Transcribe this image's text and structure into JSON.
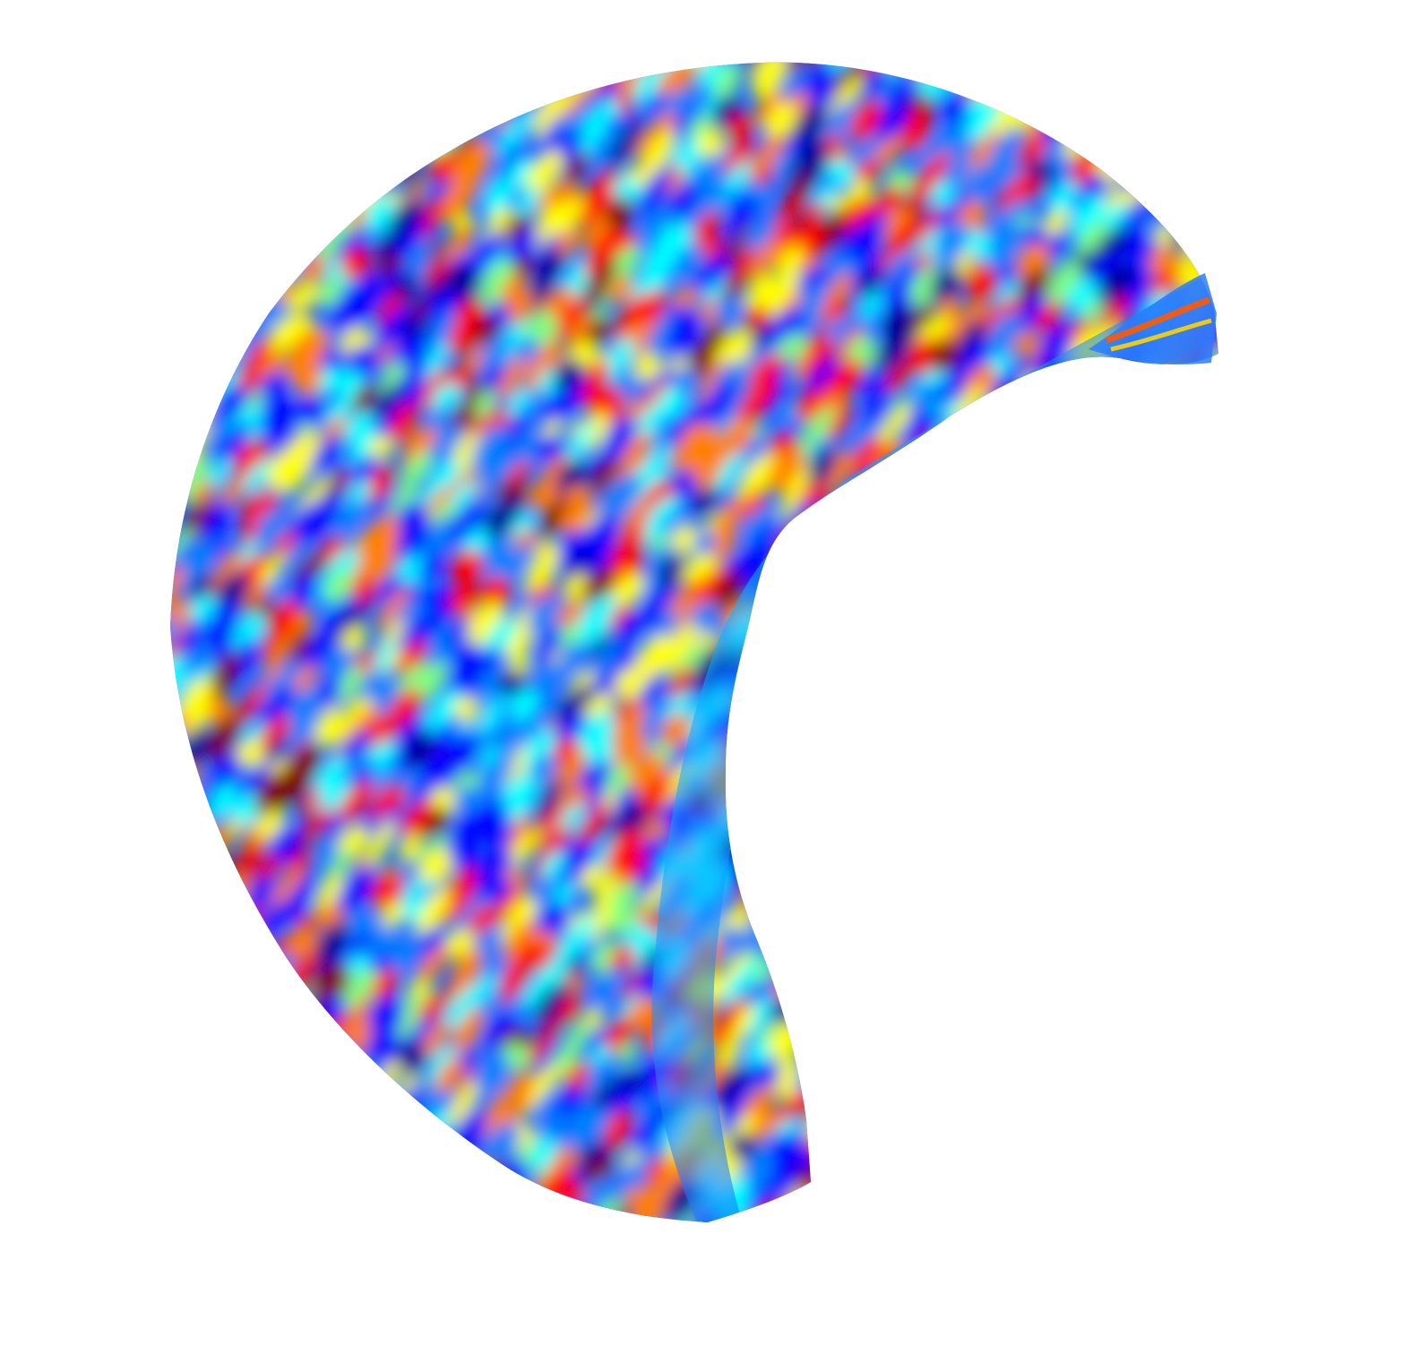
{
  "scene": {
    "background": "#ffffff",
    "colormap": "jet",
    "colormap_stops": [
      "#00008f",
      "#0000ff",
      "#0080ff",
      "#00ffff",
      "#80ff80",
      "#ffff00",
      "#ff8000",
      "#ff0000",
      "#800000"
    ],
    "base_color": "#1a6bff",
    "saddle_fold_color": "#1f78ff",
    "highlight_color": "#00e5ff"
  }
}
